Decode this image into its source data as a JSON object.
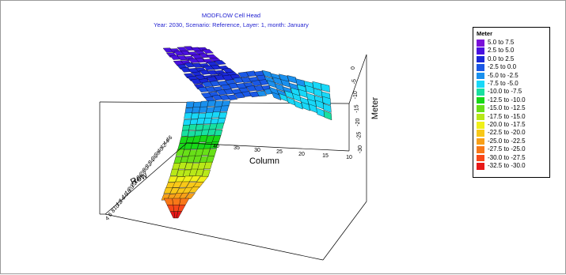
{
  "chart_data": {
    "type": "surface3d",
    "title": "MODFLOW Cell Head",
    "subtitle": "Year: 2030,  Scenario: Reference,  Layer: 1,  month: January",
    "xlabel": "Column",
    "ylabel": "Row",
    "zlabel": "Meter",
    "x_ticks": [
      "40",
      "35",
      "30",
      "25",
      "20",
      "15",
      "10"
    ],
    "y_ticks": [
      "4",
      "6",
      "8",
      "10",
      "12",
      "14",
      "16",
      "18",
      "20",
      "22",
      "24",
      "26",
      "28",
      "30",
      "32",
      "34",
      "36",
      "38",
      "40",
      "42",
      "44",
      "46"
    ],
    "z_ticks": [
      "-30",
      "-25",
      "-20",
      "-15",
      "-10",
      "-5",
      "0"
    ],
    "zlim": [
      -32.5,
      7.5
    ],
    "legend": {
      "title": "Meter",
      "position": "right",
      "entries": [
        {
          "label": "5.0 to 7.5",
          "color": "#7a10d8"
        },
        {
          "label": "2.5 to 5.0",
          "color": "#4a10e0"
        },
        {
          "label": "0.0 to 2.5",
          "color": "#1a28d8"
        },
        {
          "label": "-2.5 to 0.0",
          "color": "#1a58e6"
        },
        {
          "label": "-5.0 to -2.5",
          "color": "#1a90ee"
        },
        {
          "label": "-7.5 to -5.0",
          "color": "#18d8f8"
        },
        {
          "label": "-10.0 to -7.5",
          "color": "#18e0a0"
        },
        {
          "label": "-12.5 to -10.0",
          "color": "#18d818"
        },
        {
          "label": "-15.0 to -12.5",
          "color": "#68e018"
        },
        {
          "label": "-17.5 to -15.0",
          "color": "#b8e818"
        },
        {
          "label": "-20.0 to -17.5",
          "color": "#f0f018"
        },
        {
          "label": "-22.5 to -20.0",
          "color": "#f8c818"
        },
        {
          "label": "-25.0 to -22.5",
          "color": "#f8a018"
        },
        {
          "label": "-27.5 to -25.0",
          "color": "#f87818"
        },
        {
          "label": "-30.0 to -27.5",
          "color": "#f84818"
        },
        {
          "label": "-32.5 to -30.0",
          "color": "#e81818"
        }
      ]
    }
  }
}
